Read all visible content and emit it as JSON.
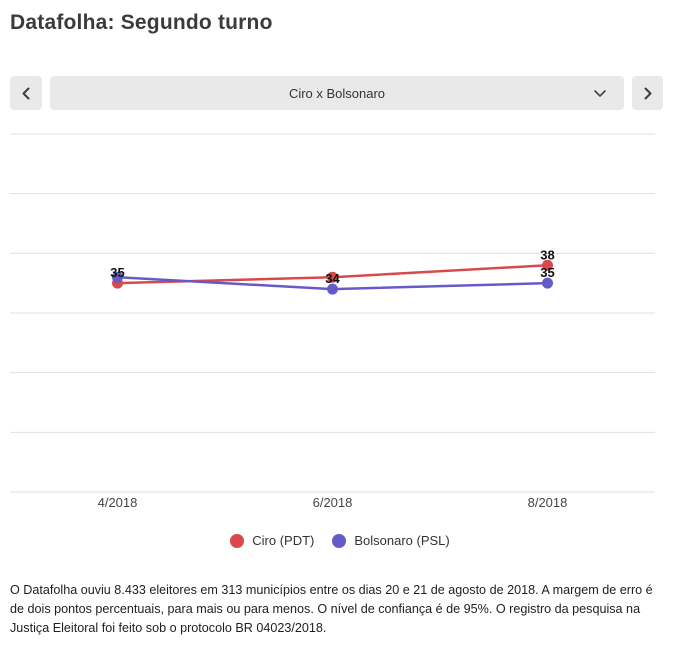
{
  "title": "Datafolha: Segundo turno",
  "selector": {
    "value": "Ciro x Bolsonaro",
    "prev_icon": "chevron-left",
    "next_icon": "chevron-right",
    "dropdown_icon": "chevron-down"
  },
  "chart_data": {
    "type": "line",
    "title": "",
    "xlabel": "",
    "ylabel": "",
    "categories": [
      "4/2018",
      "6/2018",
      "8/2018"
    ],
    "series": [
      {
        "name": "Ciro (PDT)",
        "color": "#d9494c",
        "values": [
          35,
          36,
          38
        ],
        "point_labels": [
          {
            "index": 0,
            "text": "35"
          },
          {
            "index": 2,
            "text": "38"
          }
        ]
      },
      {
        "name": "Bolsonaro (PSL)",
        "color": "#655bc8",
        "values": [
          36,
          34,
          35
        ],
        "point_labels": [
          {
            "index": 1,
            "text": "34"
          },
          {
            "index": 2,
            "text": "35"
          }
        ]
      }
    ],
    "ylim": [
      0,
      60
    ],
    "grid_step": 10,
    "grid": true,
    "y_tick_labels_visible": false,
    "legend_position": "bottom",
    "label_color": "#111111",
    "grid_color": "#e0e0e0",
    "axis_text_color": "#454545"
  },
  "legend": {
    "items": [
      {
        "label": "Ciro (PDT)",
        "color": "#d9494c"
      },
      {
        "label": "Bolsonaro (PSL)",
        "color": "#655bc8"
      }
    ]
  },
  "footnote": {
    "lines": [
      "O Datafolha ouviu 8.433 eleitores em 313 municípios entre os dias 20 e 21 de agosto de 2018. A margem de erro é",
      "de dois pontos percentuais, para mais ou para menos. O nível de confiança é de 95%. O registro da pesquisa na",
      "Justiça Eleitoral foi feito sob o protocolo BR 04023/2018."
    ]
  }
}
